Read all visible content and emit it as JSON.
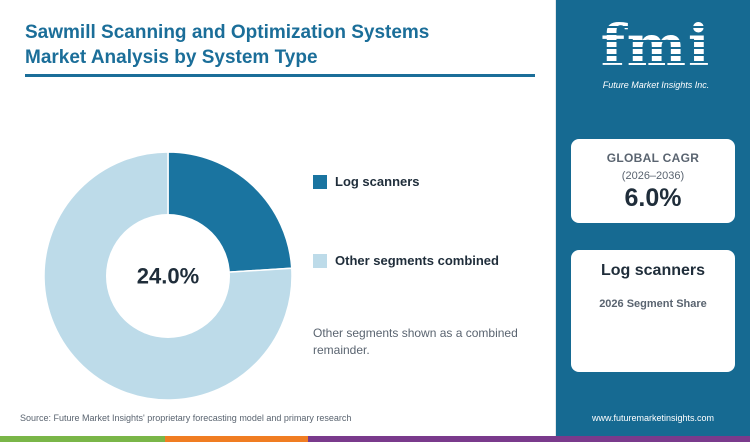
{
  "header": {
    "title_line1": "Sawmill Scanning and Optimization Systems",
    "title_line2": "Market Analysis by System Type"
  },
  "chart_data": {
    "type": "pie",
    "categories": [
      "Log scanners",
      "Other segments combined"
    ],
    "values": [
      24.0,
      76.0
    ],
    "unit": "%",
    "center_label": "24.0%",
    "legend_position": "right",
    "colors": [
      "#1a74a0",
      "#bddbe9"
    ]
  },
  "note": "Other segments shown as a combined remainder.",
  "source": "Source: Future Market Insights' proprietary forecasting model and primary research",
  "sidebar": {
    "logo_text": "fmi",
    "logo_tagline": "Future Market Insights Inc.",
    "cagr": {
      "label": "GLOBAL CAGR",
      "period": "(2026–2036)",
      "value": "6.0%"
    },
    "segment": {
      "name": "Log scanners",
      "caption": "2026 Segment Share"
    },
    "website": "www.futuremarketinsights.com"
  },
  "colors": {
    "brand_blue": "#166a92",
    "title_blue": "#1b6e99",
    "strip_green": "#7ab648",
    "strip_orange": "#f07d22",
    "strip_purple": "#7a3a8c"
  }
}
